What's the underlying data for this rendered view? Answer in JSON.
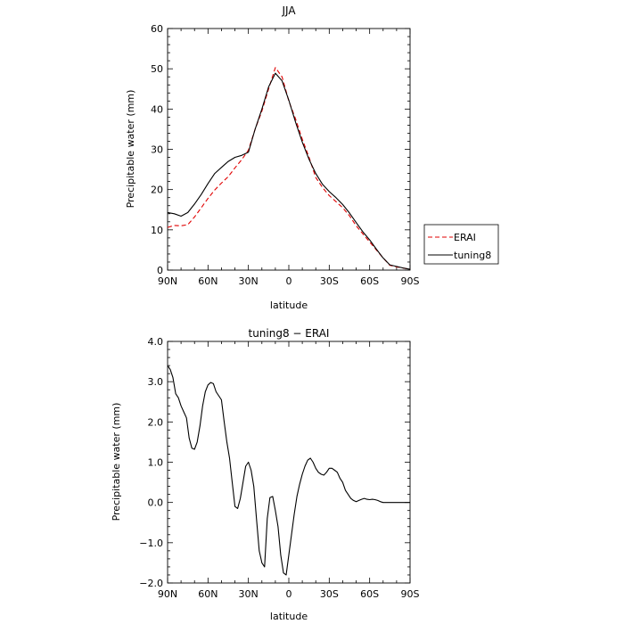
{
  "chart_data": [
    {
      "type": "line",
      "title": "JJA",
      "xlabel": "latitude",
      "ylabel": "Precipitable water (mm)",
      "xlim": [
        90,
        -90
      ],
      "ylim": [
        0,
        60
      ],
      "xticks": [
        90,
        60,
        30,
        0,
        -30,
        -60,
        -90
      ],
      "xtick_labels": [
        "90N",
        "60N",
        "30N",
        "0",
        "30S",
        "60S",
        "90S"
      ],
      "yticks": [
        0,
        10,
        20,
        30,
        40,
        50,
        60
      ],
      "ytick_labels": [
        "0",
        "10",
        "20",
        "30",
        "40",
        "50",
        "60"
      ],
      "grid": false,
      "legend_position": "outside-right",
      "series": [
        {
          "name": "ERAI",
          "color": "#e00000",
          "dash": "dashed",
          "x": [
            90,
            85,
            80,
            75,
            70,
            65,
            60,
            55,
            50,
            45,
            40,
            35,
            30,
            25,
            20,
            15,
            10,
            5,
            0,
            -5,
            -10,
            -15,
            -20,
            -25,
            -30,
            -35,
            -40,
            -45,
            -50,
            -55,
            -60,
            -65,
            -70,
            -75,
            -80,
            -85,
            -90
          ],
          "y": [
            10.6,
            11.1,
            11.0,
            11.3,
            13.2,
            15.5,
            17.8,
            19.9,
            21.6,
            23.2,
            25.4,
            27.4,
            29.8,
            35.0,
            39.5,
            45.0,
            50.3,
            48.0,
            42.0,
            37.5,
            32.5,
            28.0,
            23.0,
            20.5,
            18.5,
            17.0,
            15.5,
            13.5,
            11.0,
            9.0,
            7.0,
            5.0,
            3.0,
            1.2,
            0.8,
            0.5,
            0.2
          ]
        },
        {
          "name": "tuning8",
          "color": "#000000",
          "dash": "solid",
          "x": [
            90,
            85,
            80,
            75,
            70,
            65,
            60,
            55,
            50,
            45,
            40,
            35,
            30,
            25,
            20,
            15,
            10,
            5,
            0,
            -5,
            -10,
            -15,
            -20,
            -25,
            -30,
            -35,
            -40,
            -45,
            -50,
            -55,
            -60,
            -65,
            -70,
            -75,
            -80,
            -85,
            -90
          ],
          "y": [
            14.3,
            14.0,
            13.4,
            14.3,
            16.4,
            18.8,
            21.5,
            24.0,
            25.5,
            27.0,
            28.0,
            28.5,
            29.3,
            35.0,
            40.0,
            45.5,
            48.9,
            47.0,
            42.2,
            36.7,
            31.8,
            27.5,
            24.0,
            21.3,
            19.5,
            18.0,
            16.3,
            14.2,
            11.8,
            9.5,
            7.5,
            5.2,
            3.0,
            1.3,
            0.9,
            0.5,
            0.2
          ]
        }
      ]
    },
    {
      "type": "line",
      "title": "tuning8 − ERAI",
      "xlabel": "latitude",
      "ylabel": "Precipitable water (mm)",
      "xlim": [
        90,
        -90
      ],
      "ylim": [
        -2,
        4
      ],
      "xticks": [
        90,
        60,
        30,
        0,
        -30,
        -60,
        -90
      ],
      "xtick_labels": [
        "90N",
        "60N",
        "30N",
        "0",
        "30S",
        "60S",
        "90S"
      ],
      "yticks": [
        -2,
        -1,
        0,
        1,
        2,
        3,
        4
      ],
      "ytick_labels": [
        "−2.0",
        "−1.0",
        "0.0",
        "1.0",
        "2.0",
        "3.0",
        "4.0"
      ],
      "grid": false,
      "series": [
        {
          "color": "#000000",
          "dash": "solid",
          "x": [
            90,
            88,
            86,
            84,
            82,
            80,
            78,
            76,
            74,
            72,
            70,
            68,
            66,
            64,
            62,
            60,
            58,
            56,
            54,
            52,
            50,
            48,
            46,
            44,
            42,
            40,
            38,
            36,
            34,
            32,
            30,
            28,
            26,
            24,
            22,
            20,
            18,
            16,
            14,
            12,
            10,
            8,
            6,
            4,
            2,
            0,
            -2,
            -4,
            -6,
            -8,
            -10,
            -12,
            -14,
            -16,
            -18,
            -20,
            -22,
            -24,
            -26,
            -28,
            -30,
            -32,
            -34,
            -36,
            -38,
            -40,
            -42,
            -44,
            -46,
            -48,
            -50,
            -52,
            -54,
            -56,
            -58,
            -60,
            -62,
            -64,
            -66,
            -68,
            -70,
            -72,
            -74,
            -76,
            -78,
            -80,
            -82,
            -84,
            -86,
            -88,
            -90
          ],
          "y": [
            3.4,
            3.3,
            3.1,
            2.7,
            2.6,
            2.4,
            2.25,
            2.1,
            1.6,
            1.35,
            1.32,
            1.5,
            1.9,
            2.4,
            2.75,
            2.92,
            2.98,
            2.95,
            2.75,
            2.65,
            2.55,
            2.0,
            1.5,
            1.1,
            0.5,
            -0.1,
            -0.15,
            0.1,
            0.5,
            0.9,
            1.0,
            0.8,
            0.4,
            -0.4,
            -1.2,
            -1.5,
            -1.6,
            -0.4,
            0.12,
            0.15,
            -0.2,
            -0.6,
            -1.3,
            -1.75,
            -1.8,
            -1.3,
            -0.8,
            -0.3,
            0.15,
            0.45,
            0.7,
            0.9,
            1.05,
            1.1,
            1.0,
            0.85,
            0.75,
            0.7,
            0.68,
            0.75,
            0.85,
            0.85,
            0.8,
            0.75,
            0.6,
            0.5,
            0.3,
            0.2,
            0.1,
            0.05,
            0.02,
            0.05,
            0.08,
            0.1,
            0.08,
            0.07,
            0.08,
            0.07,
            0.05,
            0.02,
            0.0,
            0.0,
            0.0,
            0.0,
            0.0,
            0.0,
            0.0,
            0.0,
            0.0,
            0.0,
            0.0
          ]
        }
      ]
    }
  ]
}
